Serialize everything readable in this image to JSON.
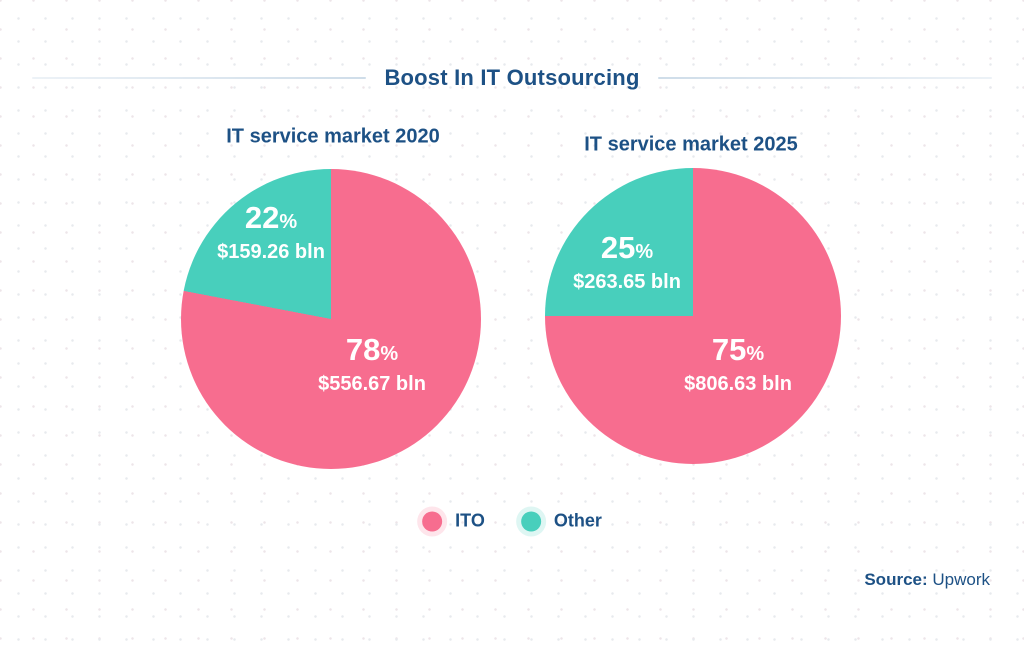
{
  "header": {
    "title": "Boost In IT Outsourcing"
  },
  "colors": {
    "ito": "#f76d8f",
    "other": "#48cfbc",
    "text_navy": "#1d5185",
    "rule": "#cfdde9",
    "label_text": "#ffffff"
  },
  "percent_sign": "%",
  "chart_data": [
    {
      "type": "pie",
      "title": "IT service market 2020",
      "slices": [
        {
          "label": "ITO",
          "percent": 78,
          "value_label": "$556.67 bln",
          "color": "#f76d8f"
        },
        {
          "label": "Other",
          "percent": 22,
          "value_label": "$159.26 bln",
          "color": "#48cfbc"
        }
      ],
      "start_angle": "12 o'clock, clockwise, ITO first",
      "legend_position": "bottom-center"
    },
    {
      "type": "pie",
      "title": "IT service market 2025",
      "slices": [
        {
          "label": "ITO",
          "percent": 75,
          "value_label": "$806.63 bln",
          "color": "#f76d8f"
        },
        {
          "label": "Other",
          "percent": 25,
          "value_label": "$263.65 bln",
          "color": "#48cfbc"
        }
      ],
      "start_angle": "12 o'clock, clockwise, ITO first",
      "legend_position": "bottom-center"
    }
  ],
  "legend": {
    "items": [
      {
        "label": "ITO",
        "color": "#f76d8f"
      },
      {
        "label": "Other",
        "color": "#48cfbc"
      }
    ]
  },
  "source": {
    "label": "Source:",
    "value": "Upwork"
  }
}
